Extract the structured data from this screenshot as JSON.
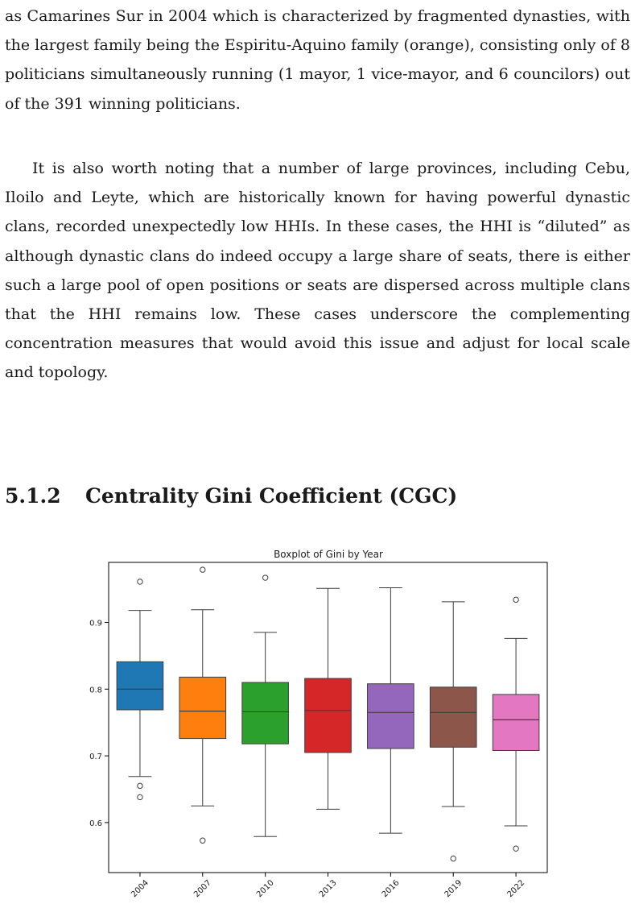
{
  "paragraphs": [
    "as Camarines Sur in 2004 which is characterized by fragmented dynasties, with the largest family being the Espiritu-Aquino family (orange), consisting only of 8 politicians simultaneously running (1 mayor, 1 vice-mayor, and 6 councilors) out of the 391 winning politicians.",
    "It is also worth noting that a number of large provinces, including Cebu, Iloilo and Leyte, which are historically known for having powerful dynastic clans, recorded unexpectedly low HHIs. In these cases, the HHI is “diluted” as although dynastic clans do indeed occupy a large share of seats, there is either such a large pool of open positions or seats are dispersed across multiple clans that the HHI remains low. These cases underscore the complementing concentration measures that would avoid this issue and adjust for local scale and topology."
  ],
  "section": {
    "number": "5.1.2",
    "title": "Centrality Gini Coefficient (CGC)"
  },
  "chart_data": {
    "type": "boxplot",
    "title": "Boxplot of Gini by Year",
    "xlabel": "",
    "ylabel": "",
    "ylim": [
      0.525,
      0.99
    ],
    "yticks": [
      0.6,
      0.7,
      0.8,
      0.9
    ],
    "grid": false,
    "categories": [
      "2004",
      "2007",
      "2010",
      "2013",
      "2016",
      "2019",
      "2022"
    ],
    "boxes": [
      {
        "category": "2004",
        "whisker_low": 0.669,
        "q1": 0.769,
        "median": 0.8,
        "q3": 0.841,
        "whisker_high": 0.918,
        "outliers": [
          0.961,
          0.655,
          0.638
        ],
        "color": "#1f77b4"
      },
      {
        "category": "2007",
        "whisker_low": 0.625,
        "q1": 0.726,
        "median": 0.767,
        "q3": 0.818,
        "whisker_high": 0.919,
        "outliers": [
          0.979,
          0.573
        ],
        "color": "#ff7f0e"
      },
      {
        "category": "2010",
        "whisker_low": 0.579,
        "q1": 0.718,
        "median": 0.766,
        "q3": 0.81,
        "whisker_high": 0.885,
        "outliers": [
          0.967
        ],
        "color": "#2ca02c"
      },
      {
        "category": "2013",
        "whisker_low": 0.62,
        "q1": 0.705,
        "median": 0.768,
        "q3": 0.816,
        "whisker_high": 0.951,
        "outliers": [],
        "color": "#d62728"
      },
      {
        "category": "2016",
        "whisker_low": 0.584,
        "q1": 0.711,
        "median": 0.765,
        "q3": 0.808,
        "whisker_high": 0.952,
        "outliers": [],
        "color": "#9467bd"
      },
      {
        "category": "2019",
        "whisker_low": 0.624,
        "q1": 0.713,
        "median": 0.765,
        "q3": 0.803,
        "whisker_high": 0.931,
        "outliers": [
          0.546
        ],
        "color": "#8c564b"
      },
      {
        "category": "2022",
        "whisker_low": 0.595,
        "q1": 0.708,
        "median": 0.754,
        "q3": 0.792,
        "whisker_high": 0.876,
        "outliers": [
          0.934,
          0.561
        ],
        "color": "#e377c2"
      }
    ]
  }
}
